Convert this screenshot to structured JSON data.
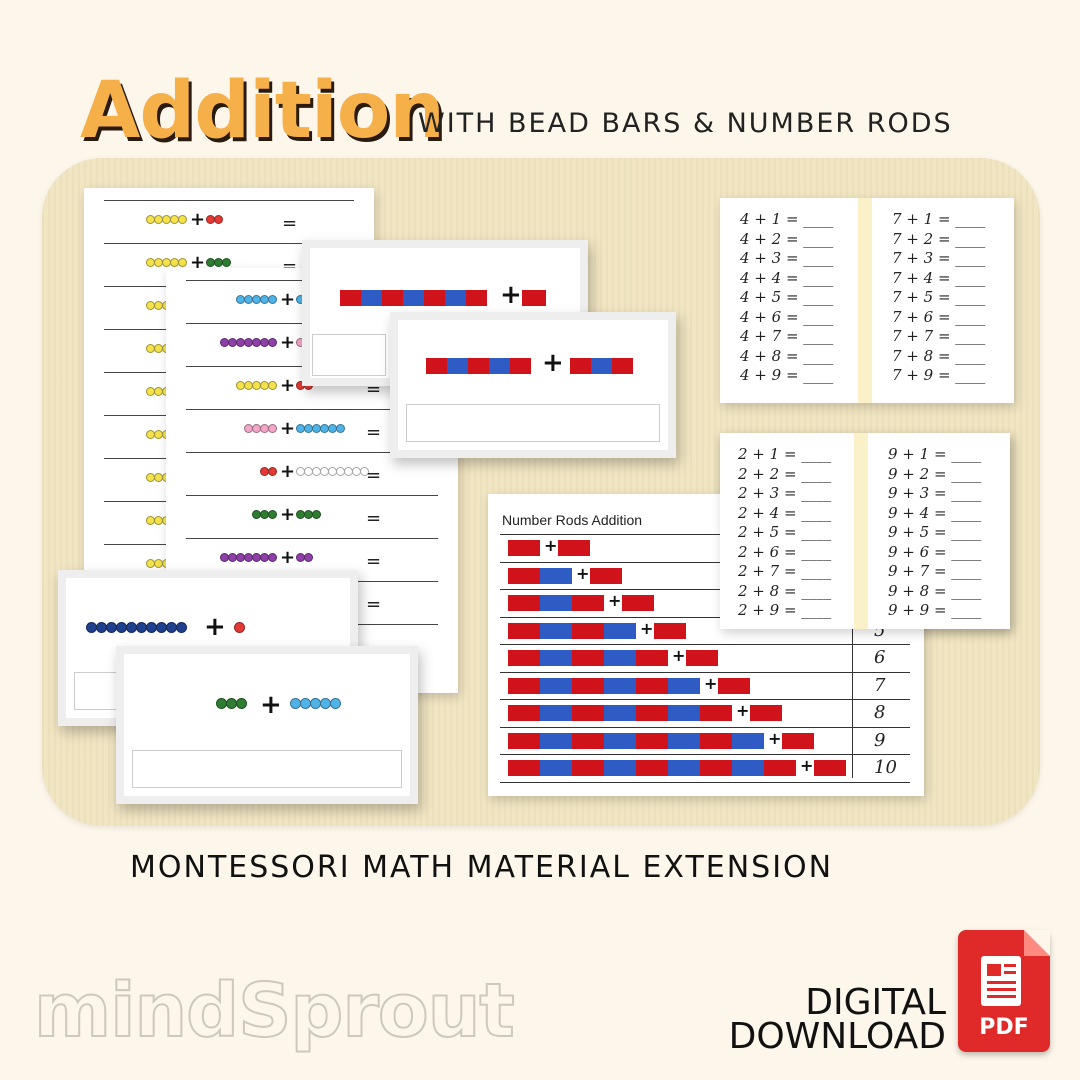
{
  "header": {
    "title": "Addition",
    "subtitle": "WITH BEAD BARS & NUMBER RODS"
  },
  "tagline": "MONTESSORI MATH MATERIAL EXTENSION",
  "brand": {
    "name": "mindSprout"
  },
  "download": {
    "line1": "DIGITAL",
    "line2": "DOWNLOAD",
    "badge": "PDF",
    "icon": "pdf-file-icon"
  },
  "worksheet": {
    "equals": "="
  },
  "cards": {
    "plus": "+"
  },
  "facts_4": [
    "4 + 1 = ____",
    "4 + 2 = ____",
    "4 + 3 = ____",
    "4 + 4 = ____",
    "4 + 5 = ____",
    "4 + 6 = ____",
    "4 + 7 = ____",
    "4 + 8 = ____",
    "4 + 9 = ____"
  ],
  "facts_7": [
    "7 + 1 = ____",
    "7 + 2 = ____",
    "7 + 3 = ____",
    "7 + 4 = ____",
    "7 + 5 = ____",
    "7 + 6 = ____",
    "7 + 7 = ____",
    "7 + 8 = ____",
    "7 + 9 = ____"
  ],
  "facts_2": [
    "2 + 1 = ____",
    "2 + 2 = ____",
    "2 + 3 = ____",
    "2 + 4 = ____",
    "2 + 5 = ____",
    "2 + 6 = ____",
    "2 + 7 = ____",
    "2 + 8 = ____",
    "2 + 9 = ____"
  ],
  "facts_9": [
    "9 + 1 = ____",
    "9 + 2 = ____",
    "9 + 3 = ____",
    "9 + 4 = ____",
    "9 + 5 = ____",
    "9 + 6 = ____",
    "9 + 7 = ____",
    "9 + 8 = ____",
    "9 + 9 = ____"
  ],
  "number_rods": {
    "title": "Number Rods Addition",
    "rows": [
      {
        "a": 1,
        "b": 1,
        "sum": ""
      },
      {
        "a": 2,
        "b": 1,
        "sum": ""
      },
      {
        "a": 3,
        "b": 1,
        "sum": ""
      },
      {
        "a": 4,
        "b": 1,
        "sum": "5"
      },
      {
        "a": 5,
        "b": 1,
        "sum": "6"
      },
      {
        "a": 6,
        "b": 1,
        "sum": "7"
      },
      {
        "a": 7,
        "b": 1,
        "sum": "8"
      },
      {
        "a": 8,
        "b": 1,
        "sum": "9"
      },
      {
        "a": 9,
        "b": 1,
        "sum": "10"
      }
    ]
  },
  "colors": {
    "accent": "#f5b04a",
    "red": "#d0121b",
    "blue": "#2f5bc4",
    "pdf": "#e02a2a"
  }
}
